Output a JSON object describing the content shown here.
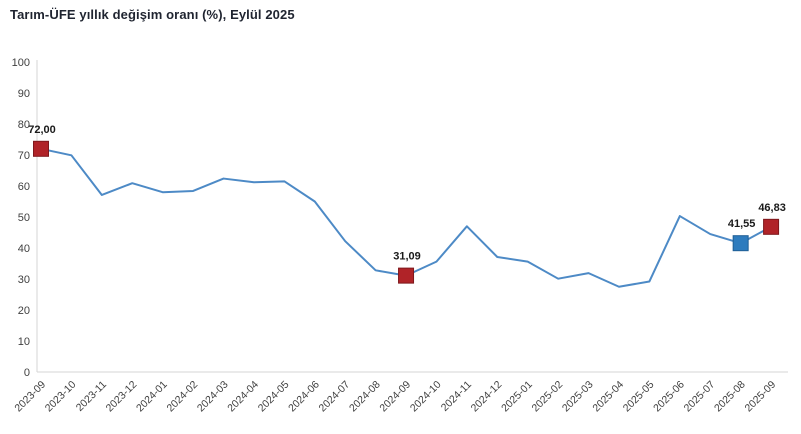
{
  "title": "Tarım-ÜFE yıllık değişim oranı (%), Eylül 2025",
  "colors": {
    "line": "#4D8AC6",
    "marker_red": "#B02328",
    "marker_red_border": "#7E181C",
    "marker_blue": "#2E7CBE",
    "marker_blue_border": "#1F5E95",
    "axis_line": "#D6D6D6",
    "tick_text": "#404040",
    "annotation_text": "#1a1a1a"
  },
  "chart_data": {
    "type": "line",
    "title": "Tarım-ÜFE yıllık değişim oranı (%), Eylül 2025",
    "x": [
      "2023-09",
      "2023-10",
      "2023-11",
      "2023-12",
      "2024-01",
      "2024-02",
      "2024-03",
      "2024-04",
      "2024-05",
      "2024-06",
      "2024-07",
      "2024-08",
      "2024-09",
      "2024-10",
      "2024-11",
      "2024-12",
      "2025-01",
      "2025-02",
      "2025-03",
      "2025-04",
      "2025-05",
      "2025-06",
      "2025-07",
      "2025-08",
      "2025-09"
    ],
    "values": [
      72.0,
      69.9,
      57.1,
      60.9,
      58.0,
      58.4,
      62.4,
      61.2,
      61.5,
      55.0,
      42.2,
      32.8,
      31.09,
      35.6,
      47.0,
      37.1,
      35.6,
      30.1,
      31.9,
      27.5,
      29.2,
      50.3,
      44.5,
      41.55,
      46.83
    ],
    "xlabel": "",
    "ylabel": "",
    "ylim": [
      0,
      100
    ],
    "ytick_step": 10,
    "grid": false,
    "legend": "none",
    "annotations": [
      {
        "x": "2023-09",
        "value": 72.0,
        "label": "72,00",
        "marker": "red"
      },
      {
        "x": "2024-09",
        "value": 31.09,
        "label": "31,09",
        "marker": "red"
      },
      {
        "x": "2025-08",
        "value": 41.55,
        "label": "41,55",
        "marker": "blue"
      },
      {
        "x": "2025-09",
        "value": 46.83,
        "label": "46,83",
        "marker": "red"
      }
    ]
  }
}
